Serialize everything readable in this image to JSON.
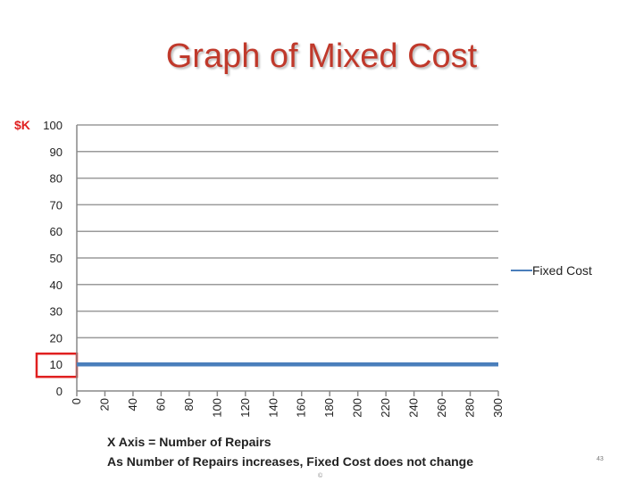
{
  "slide": {
    "title": "Graph of Mixed Cost",
    "caption_line1": "X Axis = Number of Repairs",
    "caption_line2": "As Number of Repairs increases, Fixed Cost does not change",
    "page_number": "43",
    "footer_symbol": "©"
  },
  "chart_data": {
    "type": "line",
    "y_axis_title": "$K",
    "x": [
      0,
      20,
      40,
      60,
      80,
      100,
      120,
      140,
      160,
      180,
      200,
      220,
      240,
      260,
      280,
      300
    ],
    "x_tick_labels": [
      "0",
      "20",
      "40",
      "60",
      "80",
      "100",
      "120",
      "140",
      "160",
      "180",
      "200",
      "220",
      "240",
      "260",
      "280",
      "300"
    ],
    "y_tick_labels": [
      "0",
      "10",
      "20",
      "30",
      "40",
      "50",
      "60",
      "70",
      "80",
      "90",
      "100"
    ],
    "ylim": [
      0,
      100
    ],
    "grid": true,
    "legend_position": "right",
    "series": [
      {
        "name": "Fixed Cost",
        "color": "#4a7ebb",
        "values": [
          10,
          10,
          10,
          10,
          10,
          10,
          10,
          10,
          10,
          10,
          10,
          10,
          10,
          10,
          10,
          10
        ]
      }
    ],
    "highlight_color": "#e02020",
    "highlight_tick": "10",
    "gridline_color": "#9a9a9a"
  }
}
